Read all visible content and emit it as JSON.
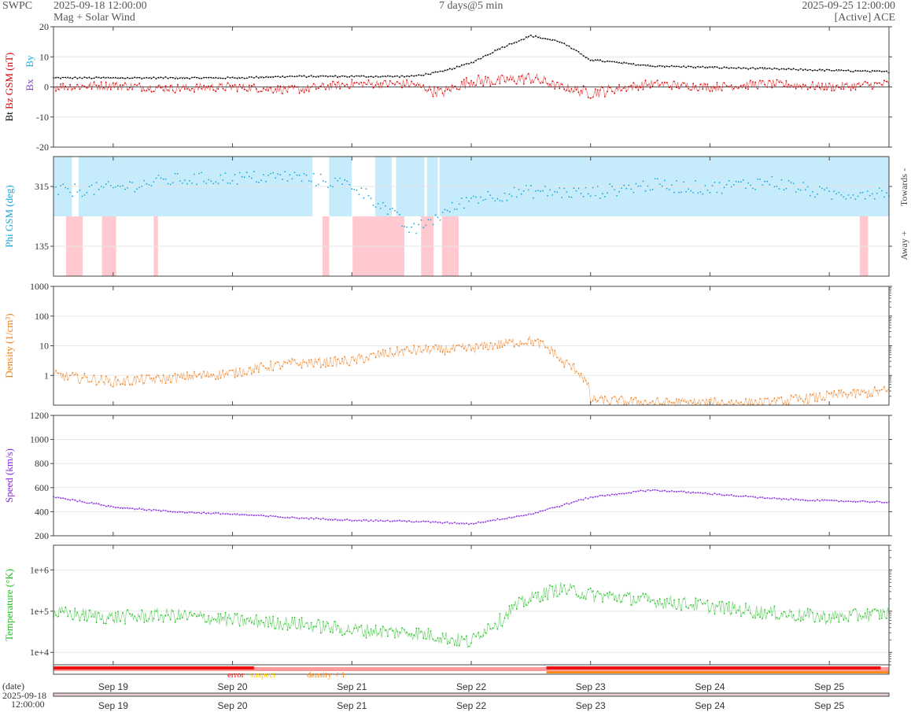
{
  "header": {
    "brand": "SWPC",
    "start": "2025-09-18 12:00:00",
    "title": "Mag + Solar Wind",
    "span": "7 days@5 min",
    "end": "2025-09-25 12:00:00",
    "source": "[Active] ACE"
  },
  "footer": {
    "date_label": "(date)",
    "date_value": "2025-09-18",
    "time_value": "12:00:00"
  },
  "colors": {
    "bt": "#000000",
    "bz": "#dd0000",
    "bx": "#7b3fbf",
    "by": "#1ab0e0",
    "phi_towards": "#c6ebfb",
    "phi_away": "#ffc9cf",
    "phi": "#17a8d8",
    "density": "#f08020",
    "speed": "#8a2be2",
    "temperature": "#22c022",
    "error": "#ee1111",
    "suspect": "#ffcc00",
    "lowdensity": "#ff8c1a"
  },
  "chart_data": {
    "type": "line",
    "x_start": "2025-09-18 12:00",
    "x_end": "2025-09-25 12:00",
    "x_ticks": [
      "Sep 19",
      "Sep 20",
      "Sep 21",
      "Sep 22",
      "Sep 23",
      "Sep 24",
      "Sep 25"
    ],
    "panels": [
      {
        "key": "mag",
        "ylabel": "Bt   Bz GSM (nT)",
        "ylabel_parts": [
          "Bt",
          "Bz GSM (nT)"
        ],
        "legend": [
          "Bx",
          "By"
        ],
        "scale": "linear",
        "ylim": [
          -20,
          20
        ],
        "yticks": [
          "20",
          "10",
          "0",
          "-10",
          "-20"
        ],
        "x": [
          "09-18 12:00",
          "09-19 00:00",
          "09-19 12:00",
          "09-20 00:00",
          "09-20 12:00",
          "09-21 00:00",
          "09-21 12:00",
          "09-21 18:00",
          "09-22 00:00",
          "09-22 06:00",
          "09-22 12:00",
          "09-22 18:00",
          "09-23 00:00",
          "09-23 12:00",
          "09-24 00:00",
          "09-24 12:00",
          "09-25 00:00",
          "09-25 12:00"
        ],
        "series": [
          {
            "name": "Bt",
            "values": [
              3,
              3,
              3,
              3,
              3.5,
              3.5,
              3.5,
              5,
              8,
              13,
              17,
              15,
              9,
              7,
              6.5,
              6,
              5.5,
              5
            ]
          },
          {
            "name": "Bz",
            "values": [
              0,
              0.5,
              -0.5,
              0,
              -1,
              1,
              1,
              -2,
              2,
              2,
              3,
              0,
              -2,
              1,
              0,
              1,
              0,
              1
            ]
          }
        ]
      },
      {
        "key": "phi",
        "ylabel": "Phi GSM (deg)",
        "right_labels": [
          "Towards -",
          "Away +"
        ],
        "scale": "linear",
        "ylim": [
          45,
          405
        ],
        "yticks": [
          "315",
          "135"
        ],
        "x": [
          "09-18 12:00",
          "09-19 00:00",
          "09-19 12:00",
          "09-20 00:00",
          "09-20 12:00",
          "09-21 00:00",
          "09-21 06:00",
          "09-21 12:00",
          "09-21 18:00",
          "09-22 00:00",
          "09-22 12:00",
          "09-23 00:00",
          "09-23 12:00",
          "09-24 00:00",
          "09-24 12:00",
          "09-25 00:00",
          "09-25 12:00"
        ],
        "series": [
          {
            "name": "Phi",
            "values": [
              300,
              310,
              335,
              340,
              345,
              320,
              260,
              180,
              230,
              280,
              300,
              295,
              320,
              310,
              330,
              290,
              300
            ]
          }
        ]
      },
      {
        "key": "density",
        "ylabel": "Density (1/cm³)",
        "scale": "log",
        "ylim": [
          0.1,
          1000
        ],
        "yticks": [
          "1000",
          "100",
          "10",
          "1"
        ],
        "x": [
          "09-18 12:00",
          "09-19 00:00",
          "09-19 12:00",
          "09-20 00:00",
          "09-20 12:00",
          "09-21 00:00",
          "09-21 12:00",
          "09-22 00:00",
          "09-22 12:00",
          "09-22 18:00",
          "09-23 00:00",
          "09-23 12:00",
          "09-24 00:00",
          "09-24 12:00",
          "09-25 00:00",
          "09-25 12:00"
        ],
        "series": [
          {
            "name": "Density",
            "values": [
              1,
              0.6,
              0.8,
              1.2,
              2.5,
              3,
              7,
              8,
              15,
              3,
              0.15,
              0.12,
              0.12,
              0.12,
              0.2,
              0.3
            ]
          }
        ]
      },
      {
        "key": "speed",
        "ylabel": "Speed (km/s)",
        "scale": "linear",
        "ylim": [
          200,
          1200
        ],
        "yticks": [
          "1200",
          "1000",
          "800",
          "600",
          "400",
          "200"
        ],
        "x": [
          "09-18 12:00",
          "09-19 00:00",
          "09-19 12:00",
          "09-20 00:00",
          "09-20 12:00",
          "09-21 00:00",
          "09-21 12:00",
          "09-22 00:00",
          "09-22 12:00",
          "09-23 00:00",
          "09-23 12:00",
          "09-24 00:00",
          "09-24 12:00",
          "09-25 00:00",
          "09-25 12:00"
        ],
        "series": [
          {
            "name": "Speed",
            "values": [
              525,
              440,
              400,
              380,
              350,
              330,
              320,
              300,
              380,
              520,
              580,
              550,
              510,
              490,
              480
            ]
          }
        ]
      },
      {
        "key": "temperature",
        "ylabel": "Temperature (°K)",
        "scale": "log",
        "ylim": [
          5000,
          4000000
        ],
        "yticks": [
          "1e+6",
          "1e+5",
          "1e+4"
        ],
        "x": [
          "09-18 12:00",
          "09-19 00:00",
          "09-19 12:00",
          "09-20 00:00",
          "09-20 12:00",
          "09-21 00:00",
          "09-21 12:00",
          "09-22 00:00",
          "09-22 06:00",
          "09-22 12:00",
          "09-22 18:00",
          "09-23 00:00",
          "09-23 12:00",
          "09-24 00:00",
          "09-24 12:00",
          "09-25 00:00",
          "09-25 12:00"
        ],
        "series": [
          {
            "name": "Temperature",
            "values": [
              90000,
              70000,
              80000,
              60000,
              50000,
              35000,
              30000,
              17000,
              60000,
              200000,
              350000,
              250000,
              180000,
              130000,
              90000,
              70000,
              90000
            ]
          }
        ]
      }
    ],
    "legend_strip": [
      "error",
      "suspect",
      "density < 1"
    ]
  }
}
